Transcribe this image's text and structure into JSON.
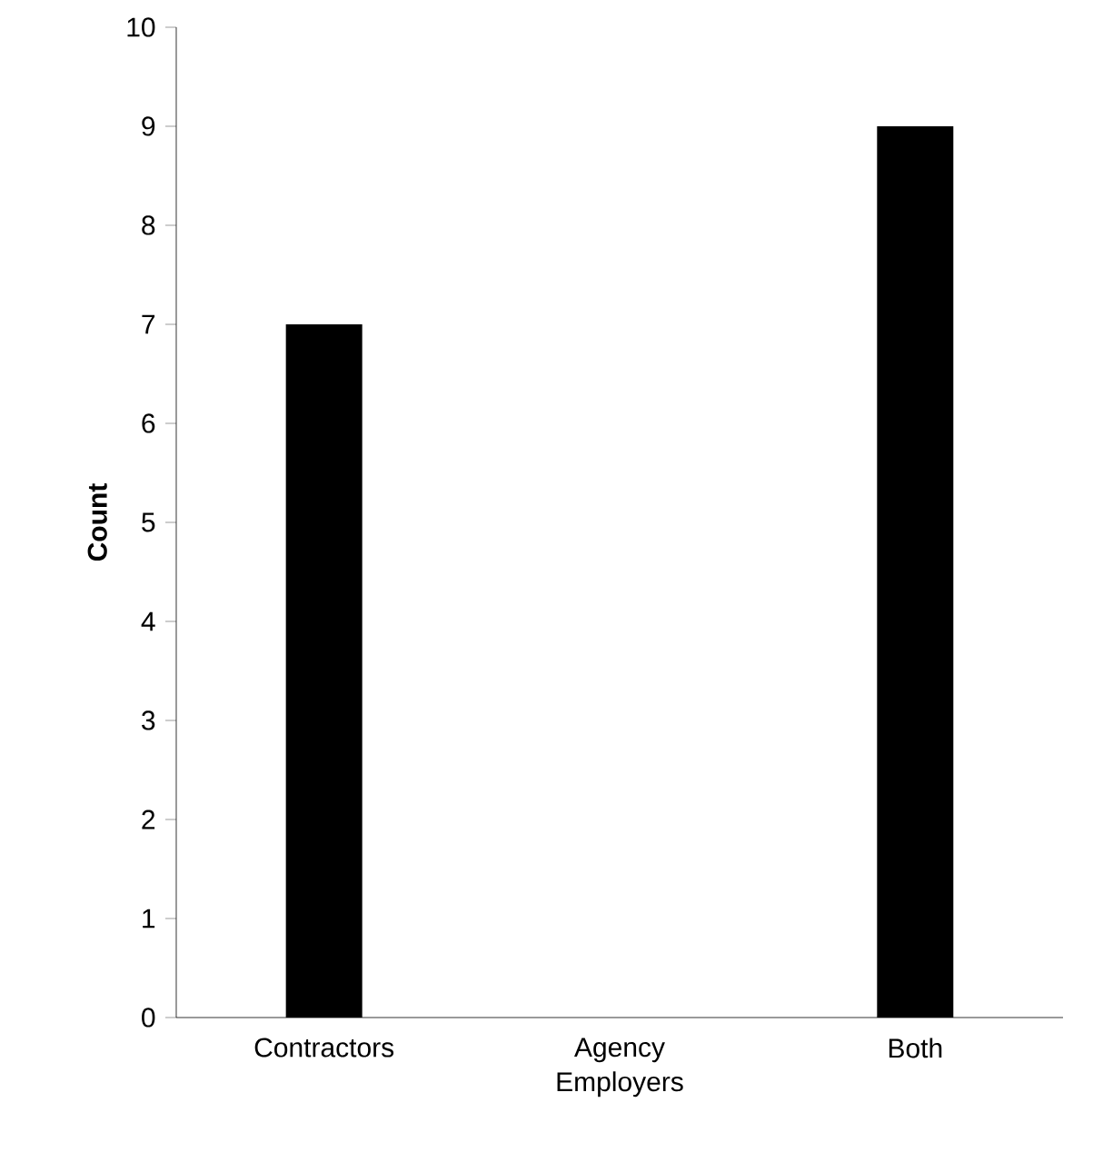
{
  "chart_data": {
    "type": "bar",
    "ylabel": "Count",
    "categories": [
      "Contractors",
      "Agency Employers",
      "Both"
    ],
    "values": [
      7,
      0,
      9
    ],
    "color": "#000000",
    "ylim": [
      0,
      10
    ],
    "yticks": [
      0,
      1,
      2,
      3,
      4,
      5,
      6,
      7,
      8,
      9,
      10
    ],
    "grid": false
  }
}
